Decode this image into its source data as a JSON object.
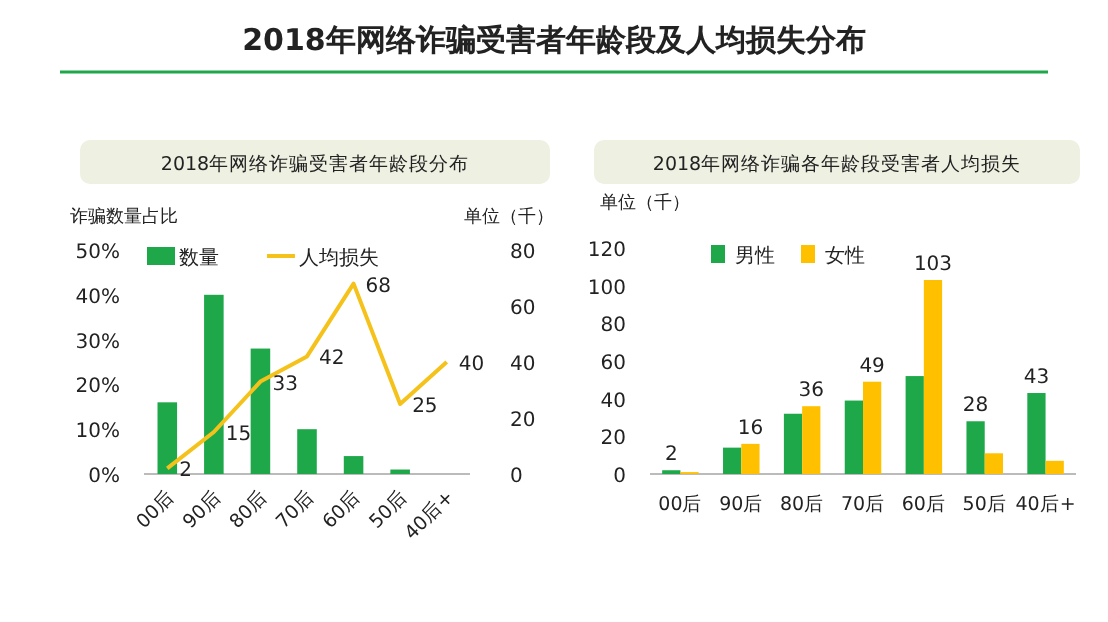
{
  "chart_data": [
    {
      "type": "other",
      "title": "2018年网络诈骗受害者年龄段及人均损失分布"
    },
    {
      "type": "bar",
      "title": "2018年网络诈骗受害者年龄段分布",
      "ylabel": "诈骗数量占比",
      "y2label": "单位（千）",
      "categories": [
        "00后",
        "90后",
        "80后",
        "70后",
        "60后",
        "50后",
        "40后+"
      ],
      "series": [
        {
          "name": "数量",
          "color": "#1fa84a",
          "values": [
            16,
            40,
            28,
            10,
            4,
            1,
            0
          ]
        },
        {
          "name": "人均损失",
          "type": "line",
          "axis": "y2",
          "color": "#f5c21b",
          "values": [
            2,
            15,
            33,
            42,
            68,
            25,
            40
          ],
          "value_labels": [
            "2",
            "15",
            "33",
            "42",
            "68",
            "25",
            "40"
          ]
        }
      ],
      "ylim": [
        0,
        50
      ],
      "yticks": [
        {
          "value": 0,
          "label": "0%"
        },
        {
          "value": 10,
          "label": "10%"
        },
        {
          "value": 20,
          "label": "20%"
        },
        {
          "value": 30,
          "label": "30%"
        },
        {
          "value": 40,
          "label": "40%"
        },
        {
          "value": 50,
          "label": "50%"
        }
      ],
      "y2lim": [
        0,
        80
      ],
      "y2ticks": [
        0,
        20,
        40,
        60,
        80
      ],
      "legend": "top"
    },
    {
      "type": "bar",
      "title": "2018年网络诈骗各年龄段受害者人均损失",
      "ylabel": "单位（千）",
      "categories": [
        "00后",
        "90后",
        "80后",
        "70后",
        "60后",
        "50后",
        "40后+"
      ],
      "series": [
        {
          "name": "男性",
          "color": "#1fa84a",
          "values": [
            2,
            14,
            32,
            39,
            52,
            28,
            43
          ],
          "value_labels": [
            "2",
            null,
            null,
            null,
            null,
            "28",
            "43"
          ]
        },
        {
          "name": "女性",
          "color": "#ffc000",
          "values": [
            1,
            16,
            36,
            49,
            103,
            11,
            7
          ],
          "value_labels": [
            null,
            "16",
            "36",
            "49",
            "103",
            null,
            null
          ]
        }
      ],
      "ylim": [
        0,
        120
      ],
      "yticks": [
        0,
        20,
        40,
        60,
        80,
        100,
        120
      ],
      "legend": "top"
    }
  ]
}
